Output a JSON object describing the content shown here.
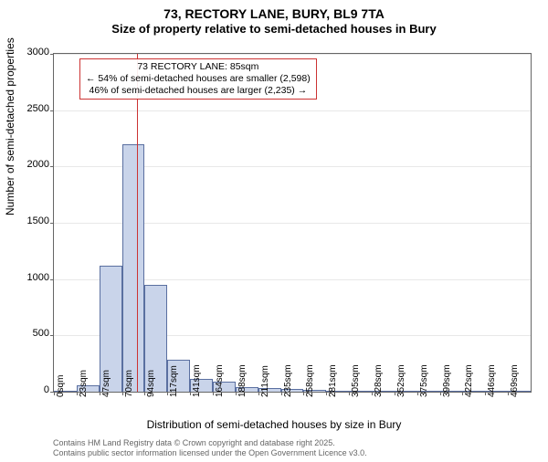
{
  "title_line1": "73, RECTORY LANE, BURY, BL9 7TA",
  "title_line2": "Size of property relative to semi-detached houses in Bury",
  "y_axis_label": "Number of semi-detached properties",
  "x_axis_label": "Distribution of semi-detached houses by size in Bury",
  "chart": {
    "type": "histogram",
    "ylim": [
      0,
      3000
    ],
    "ytick_step": 500,
    "yticks": [
      0,
      500,
      1000,
      1500,
      2000,
      2500,
      3000
    ],
    "x_categories": [
      "0sqm",
      "23sqm",
      "47sqm",
      "70sqm",
      "94sqm",
      "117sqm",
      "141sqm",
      "164sqm",
      "188sqm",
      "211sqm",
      "235sqm",
      "258sqm",
      "281sqm",
      "305sqm",
      "328sqm",
      "352sqm",
      "375sqm",
      "399sqm",
      "422sqm",
      "446sqm",
      "469sqm"
    ],
    "values": [
      0,
      60,
      1120,
      2200,
      950,
      280,
      110,
      90,
      40,
      35,
      25,
      20,
      10,
      5,
      3,
      2,
      1,
      1,
      0,
      0,
      0
    ],
    "bar_fill": "#c9d4ea",
    "bar_stroke": "#5a6fa0",
    "bar_width_ratio": 1.0,
    "background_color": "#ffffff",
    "axis_color": "#666666",
    "text_color": "#000000",
    "reference_line": {
      "x_index": 3.65,
      "color": "#cc3333"
    },
    "annotation": {
      "border_color": "#cc3333",
      "text_color": "#000000",
      "line1": "73 RECTORY LANE: 85sqm",
      "line2": "← 54% of semi-detached houses are smaller (2,598)",
      "line3": "46% of semi-detached houses are larger (2,235) →"
    }
  },
  "footer_line1": "Contains HM Land Registry data © Crown copyright and database right 2025.",
  "footer_line2": "Contains public sector information licensed under the Open Government Licence v3.0."
}
